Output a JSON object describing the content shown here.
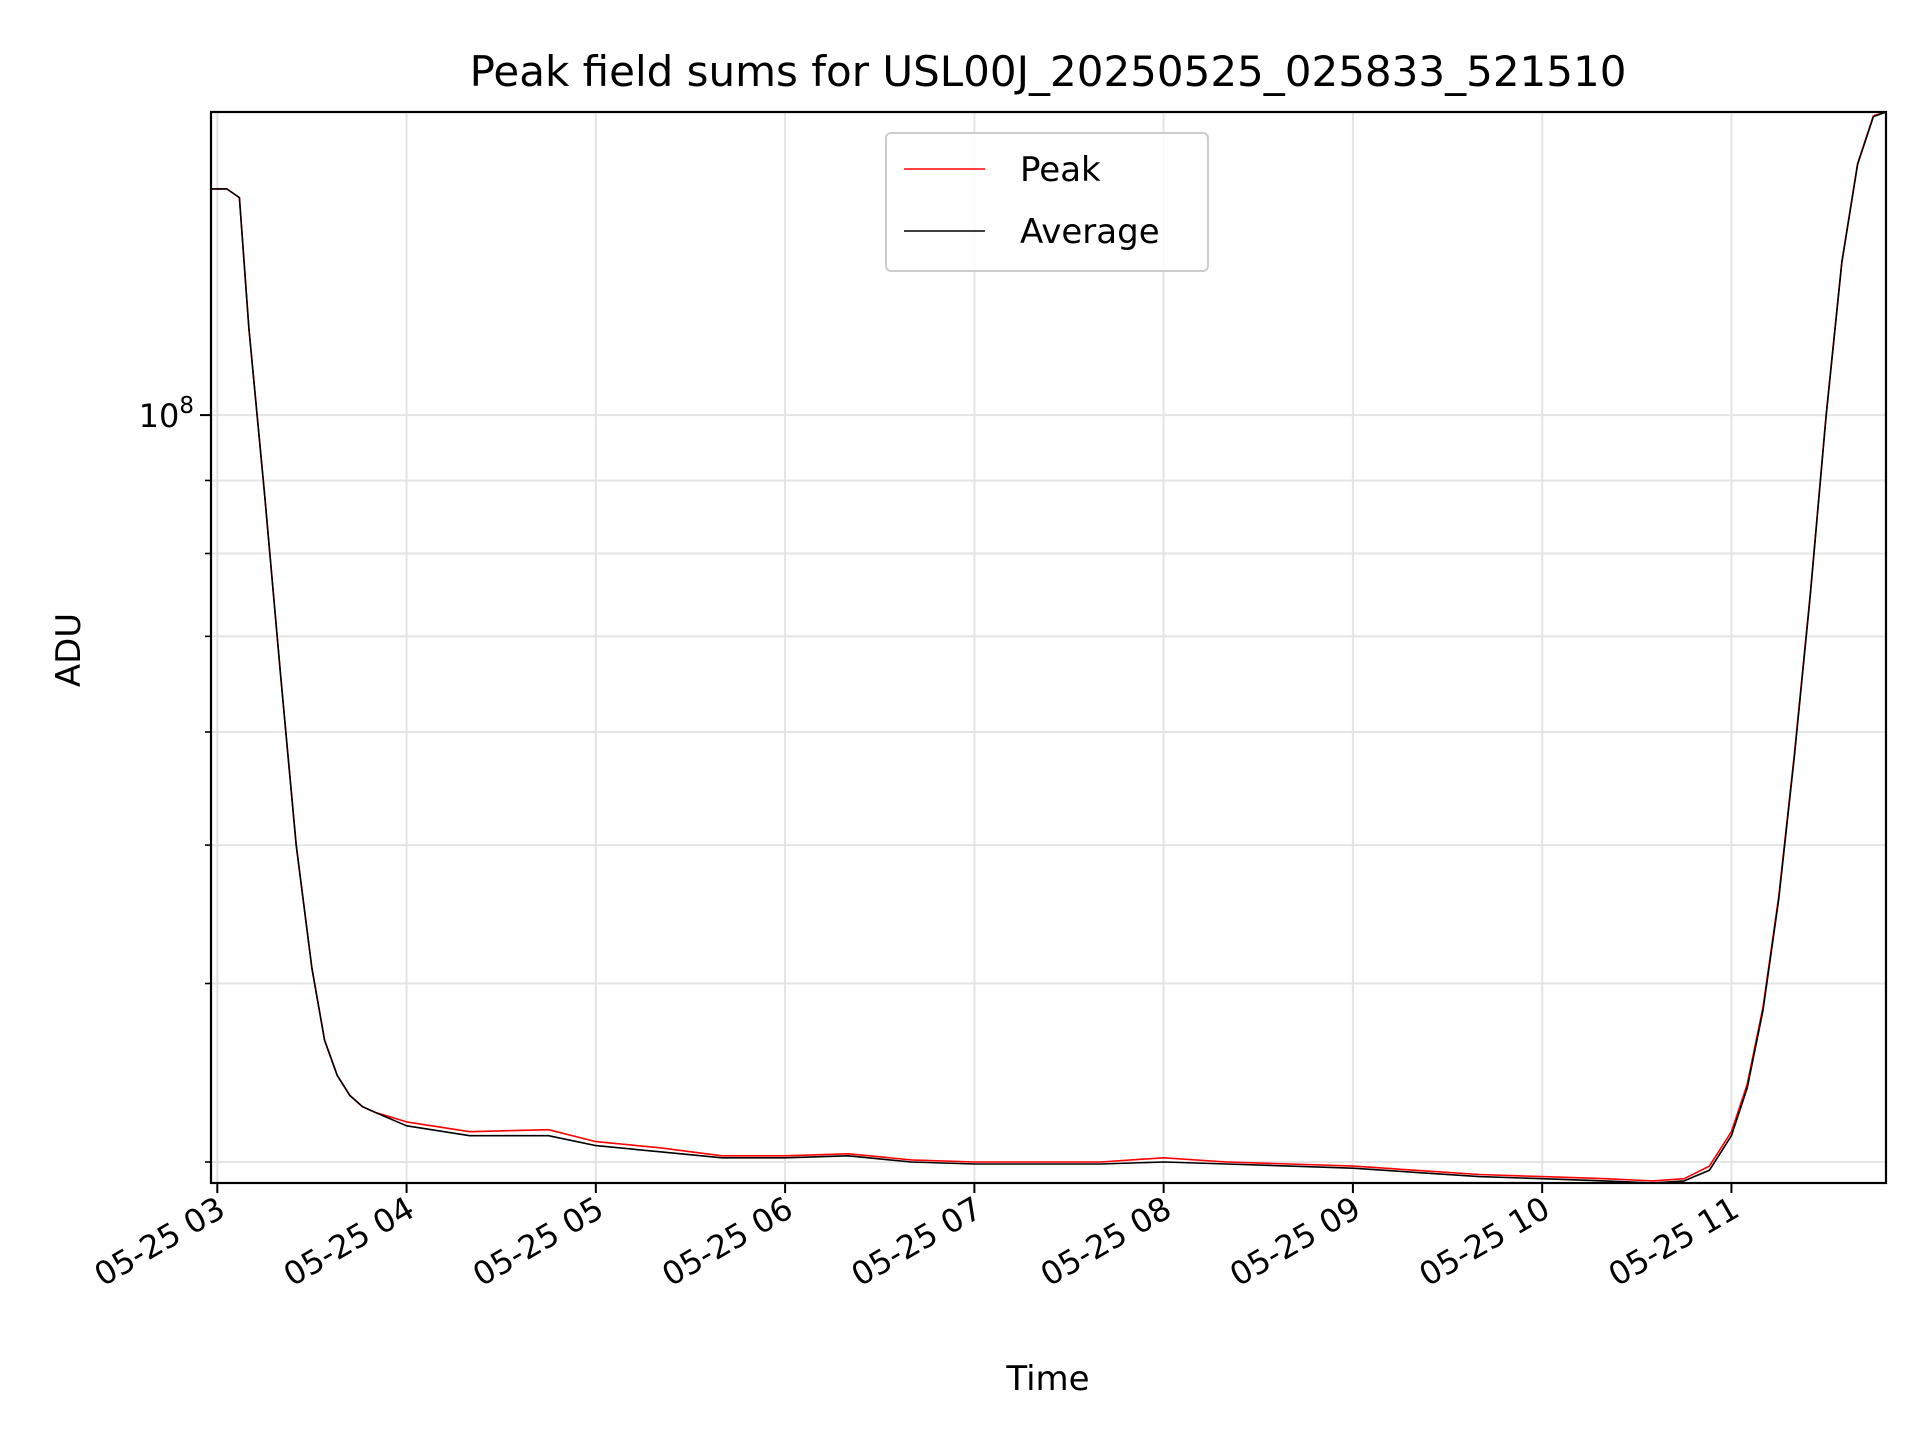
{
  "chart_data": {
    "type": "line",
    "title": "Peak field sums for USL00J_20250525_025833_521510",
    "xlabel": "Time",
    "ylabel": "ADU",
    "yscale": "log",
    "ylim": [
      29000000,
      163000000
    ],
    "xlim": [
      "2025-05-25 02:58",
      "2025-05-25 11:49"
    ],
    "grid": true,
    "legend": {
      "position": "upper center",
      "entries": [
        "Peak",
        "Average"
      ]
    },
    "x_tick_labels": [
      "05-25 03",
      "05-25 04",
      "05-25 05",
      "05-25 06",
      "05-25 07",
      "05-25 08",
      "05-25 09",
      "05-25 10",
      "05-25 11"
    ],
    "y_tick_labels": [
      {
        "base": "10",
        "exp": "8",
        "value": 100000000
      }
    ],
    "y_minor_ticks": [
      30000000,
      40000000,
      50000000,
      60000000,
      70000000,
      80000000,
      90000000,
      200000000
    ],
    "series": [
      {
        "name": "Peak",
        "color": "#ff0000",
        "x": [
          "2025-05-25 02:58",
          "2025-05-25 03:03",
          "2025-05-25 03:07",
          "2025-05-25 03:10",
          "2025-05-25 03:15",
          "2025-05-25 03:20",
          "2025-05-25 03:25",
          "2025-05-25 03:30",
          "2025-05-25 03:34",
          "2025-05-25 03:38",
          "2025-05-25 03:42",
          "2025-05-25 03:46",
          "2025-05-25 03:50",
          "2025-05-25 04:00",
          "2025-05-25 04:20",
          "2025-05-25 04:45",
          "2025-05-25 05:00",
          "2025-05-25 05:20",
          "2025-05-25 05:40",
          "2025-05-25 06:00",
          "2025-05-25 06:20",
          "2025-05-25 06:40",
          "2025-05-25 07:00",
          "2025-05-25 07:20",
          "2025-05-25 07:40",
          "2025-05-25 08:00",
          "2025-05-25 08:20",
          "2025-05-25 08:40",
          "2025-05-25 09:00",
          "2025-05-25 09:20",
          "2025-05-25 09:40",
          "2025-05-25 10:00",
          "2025-05-25 10:20",
          "2025-05-25 10:35",
          "2025-05-25 10:45",
          "2025-05-25 10:53",
          "2025-05-25 11:00",
          "2025-05-25 11:05",
          "2025-05-25 11:10",
          "2025-05-25 11:15",
          "2025-05-25 11:20",
          "2025-05-25 11:25",
          "2025-05-25 11:30",
          "2025-05-25 11:35",
          "2025-05-25 11:40",
          "2025-05-25 11:45",
          "2025-05-25 11:49"
        ],
        "values": [
          144000000,
          144000000,
          142000000,
          115000000,
          88000000,
          66000000,
          50000000,
          41000000,
          36500000,
          34500000,
          33400000,
          32800000,
          32500000,
          32000000,
          31500000,
          31600000,
          31000000,
          30700000,
          30300000,
          30300000,
          30400000,
          30100000,
          30000000,
          30000000,
          30000000,
          30200000,
          30000000,
          29900000,
          29800000,
          29600000,
          29400000,
          29300000,
          29200000,
          29100000,
          29200000,
          29800000,
          31500000,
          34000000,
          38500000,
          46000000,
          58000000,
          75000000,
          100000000,
          128000000,
          150000000,
          162000000,
          163000000
        ]
      },
      {
        "name": "Average",
        "color": "#000000",
        "x": [
          "2025-05-25 02:58",
          "2025-05-25 03:03",
          "2025-05-25 03:07",
          "2025-05-25 03:10",
          "2025-05-25 03:15",
          "2025-05-25 03:20",
          "2025-05-25 03:25",
          "2025-05-25 03:30",
          "2025-05-25 03:34",
          "2025-05-25 03:38",
          "2025-05-25 03:42",
          "2025-05-25 03:46",
          "2025-05-25 03:50",
          "2025-05-25 04:00",
          "2025-05-25 04:20",
          "2025-05-25 04:45",
          "2025-05-25 05:00",
          "2025-05-25 05:20",
          "2025-05-25 05:40",
          "2025-05-25 06:00",
          "2025-05-25 06:20",
          "2025-05-25 06:40",
          "2025-05-25 07:00",
          "2025-05-25 07:20",
          "2025-05-25 07:40",
          "2025-05-25 08:00",
          "2025-05-25 08:20",
          "2025-05-25 08:40",
          "2025-05-25 09:00",
          "2025-05-25 09:20",
          "2025-05-25 09:40",
          "2025-05-25 10:00",
          "2025-05-25 10:20",
          "2025-05-25 10:35",
          "2025-05-25 10:45",
          "2025-05-25 10:53",
          "2025-05-25 11:00",
          "2025-05-25 11:05",
          "2025-05-25 11:10",
          "2025-05-25 11:15",
          "2025-05-25 11:20",
          "2025-05-25 11:25",
          "2025-05-25 11:30",
          "2025-05-25 11:35",
          "2025-05-25 11:40",
          "2025-05-25 11:45",
          "2025-05-25 11:49"
        ],
        "values": [
          144000000,
          144000000,
          142000000,
          115000000,
          88000000,
          66000000,
          50000000,
          41000000,
          36500000,
          34500000,
          33400000,
          32800000,
          32500000,
          31800000,
          31300000,
          31300000,
          30800000,
          30500000,
          30200000,
          30200000,
          30300000,
          30000000,
          29900000,
          29900000,
          29900000,
          30000000,
          29900000,
          29800000,
          29700000,
          29500000,
          29300000,
          29200000,
          29100000,
          29000000,
          29100000,
          29600000,
          31300000,
          33800000,
          38300000,
          45800000,
          57800000,
          74800000,
          99800000,
          127800000,
          149800000,
          161800000,
          163000000
        ]
      }
    ]
  }
}
